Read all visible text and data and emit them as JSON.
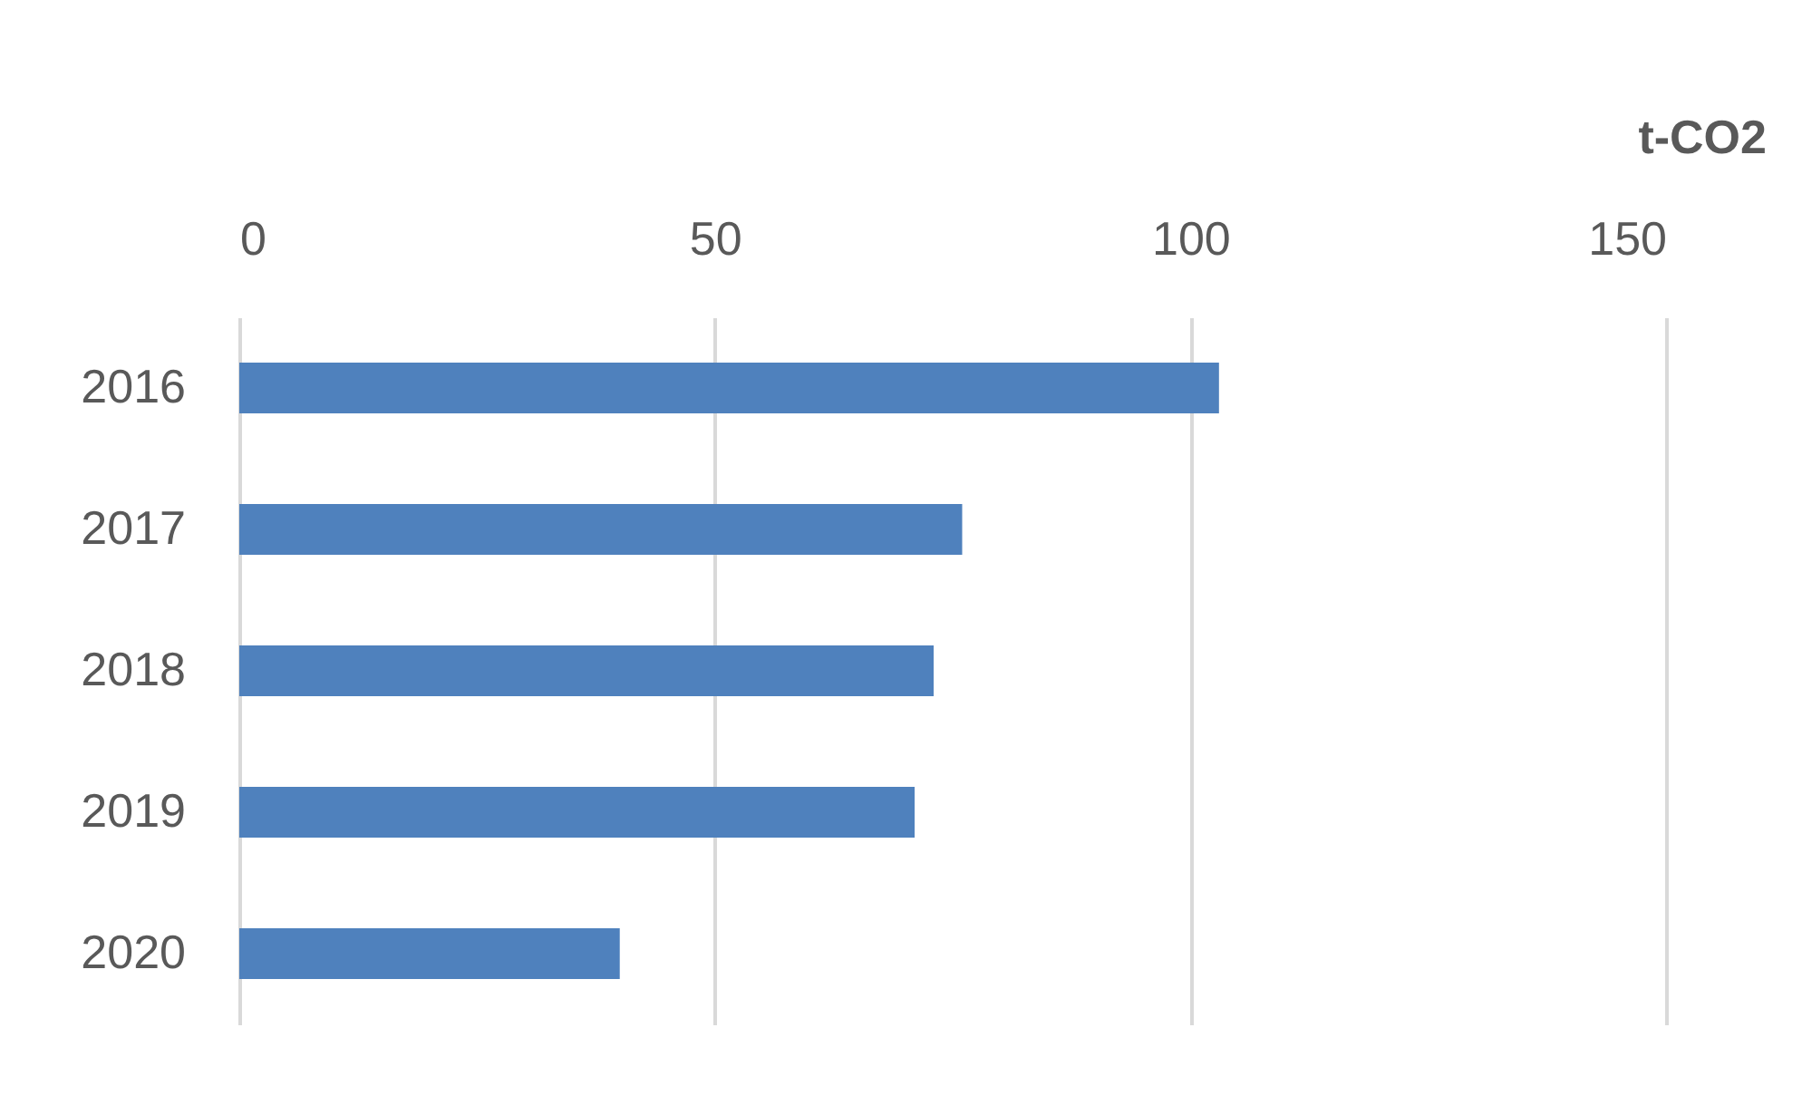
{
  "chart_data": {
    "type": "bar",
    "orientation": "horizontal",
    "xlabel": "t-CO2",
    "categories": [
      "2016",
      "2017",
      "2018",
      "2019",
      "2020"
    ],
    "values": [
      103,
      76,
      73,
      71,
      40
    ],
    "color": "#4f81bd",
    "xlim": [
      0,
      150
    ],
    "xticks": [
      0,
      50,
      100,
      150
    ],
    "grid": "x"
  }
}
